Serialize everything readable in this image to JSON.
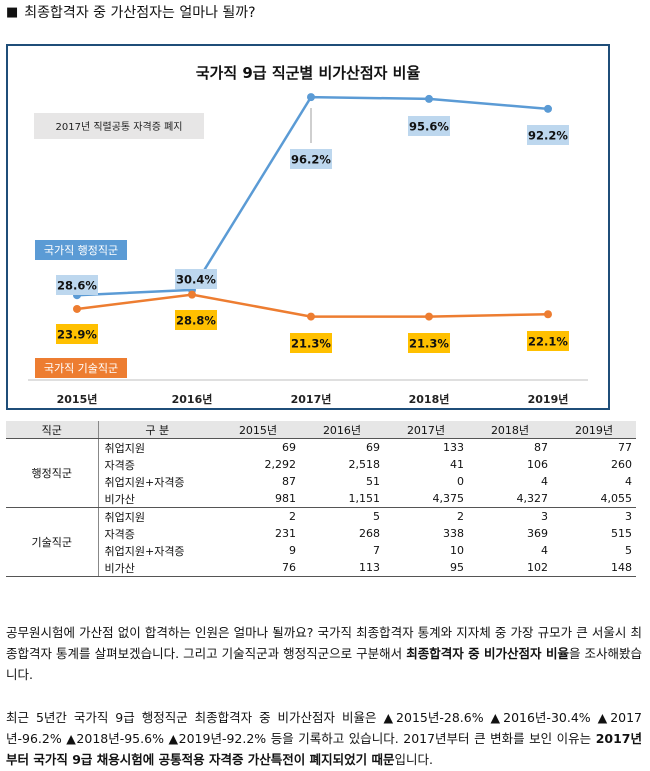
{
  "heading": {
    "bullet": "■",
    "text": "최종합격자 중 가산점자는 얼마나 될까?"
  },
  "colors": {
    "admin": "#5b9bd5",
    "tech": "#ed7d31",
    "admin_label_bg": "#bdd7ee",
    "tech_label_bg": "#ffc000",
    "border": "#1f4e79"
  },
  "chart_data": {
    "type": "line",
    "title": "국가직 9급 직군별 비가산점자 비율",
    "categories": [
      "2015년",
      "2016년",
      "2017년",
      "2018년",
      "2019년"
    ],
    "ylim": [
      0,
      100
    ],
    "series": [
      {
        "name": "국가직 행정직군",
        "values": [
          28.6,
          30.4,
          96.2,
          95.6,
          92.2
        ],
        "labels": [
          "28.6%",
          "30.4%",
          "96.2%",
          "95.6%",
          "92.2%"
        ]
      },
      {
        "name": "국가직 기술직군",
        "values": [
          23.9,
          28.8,
          21.3,
          21.3,
          22.1
        ],
        "labels": [
          "23.9%",
          "28.8%",
          "21.3%",
          "21.3%",
          "22.1%"
        ]
      }
    ],
    "annotation": "2017년 직렬공통 자격증 폐지"
  },
  "table": {
    "headers": [
      "직군",
      "구  분",
      "2015년",
      "2016년",
      "2017년",
      "2018년",
      "2019년"
    ],
    "groups": [
      {
        "name": "행정직군",
        "rows": [
          {
            "item": "취업지원",
            "values": [
              "69",
              "69",
              "133",
              "87",
              "77"
            ]
          },
          {
            "item": "자격증",
            "values": [
              "2,292",
              "2,518",
              "41",
              "106",
              "260"
            ]
          },
          {
            "item": "취업지원+자격증",
            "values": [
              "87",
              "51",
              "0",
              "4",
              "4"
            ]
          },
          {
            "item": "비가산",
            "values": [
              "981",
              "1,151",
              "4,375",
              "4,327",
              "4,055"
            ]
          }
        ]
      },
      {
        "name": "기술직군",
        "rows": [
          {
            "item": "취업지원",
            "values": [
              "2",
              "5",
              "2",
              "3",
              "3"
            ]
          },
          {
            "item": "자격증",
            "values": [
              "231",
              "268",
              "338",
              "369",
              "515"
            ]
          },
          {
            "item": "취업지원+자격증",
            "values": [
              "9",
              "7",
              "10",
              "4",
              "5"
            ]
          },
          {
            "item": "비가산",
            "values": [
              "76",
              "113",
              "95",
              "102",
              "148"
            ]
          }
        ]
      }
    ]
  },
  "paragraph1": {
    "text": "공무원시험에 가산점 없이 합격하는 인원은 얼마나 될까요? 국가직 최종합격자 통계와 지자체 중 가장 규모가 큰 서울시 최종합격자 통계를 살펴보겠습니다. 그리고 기술직군과 행정직군으로 구분해서 ",
    "bold": "최종합격자 중 비가산점자 비율",
    "tail": "을 조사해봤습니다."
  },
  "paragraph2": {
    "text": "최근 5년간 국가직 9급 행정직군 최종합격자 중 비가산점자 비율은 ▲2015년-28.6% ▲2016년-30.4% ▲2017년-96.2% ▲2018년-95.6% ▲2019년-92.2% 등을 기록하고 있습니다. 2017년부터 큰 변화를 보인 이유는 ",
    "bold": "2017년부터 국가직 9급 채용시험에 공통적용 자격증 가산특전이 폐지되었기 때문",
    "tail": "입니다."
  }
}
